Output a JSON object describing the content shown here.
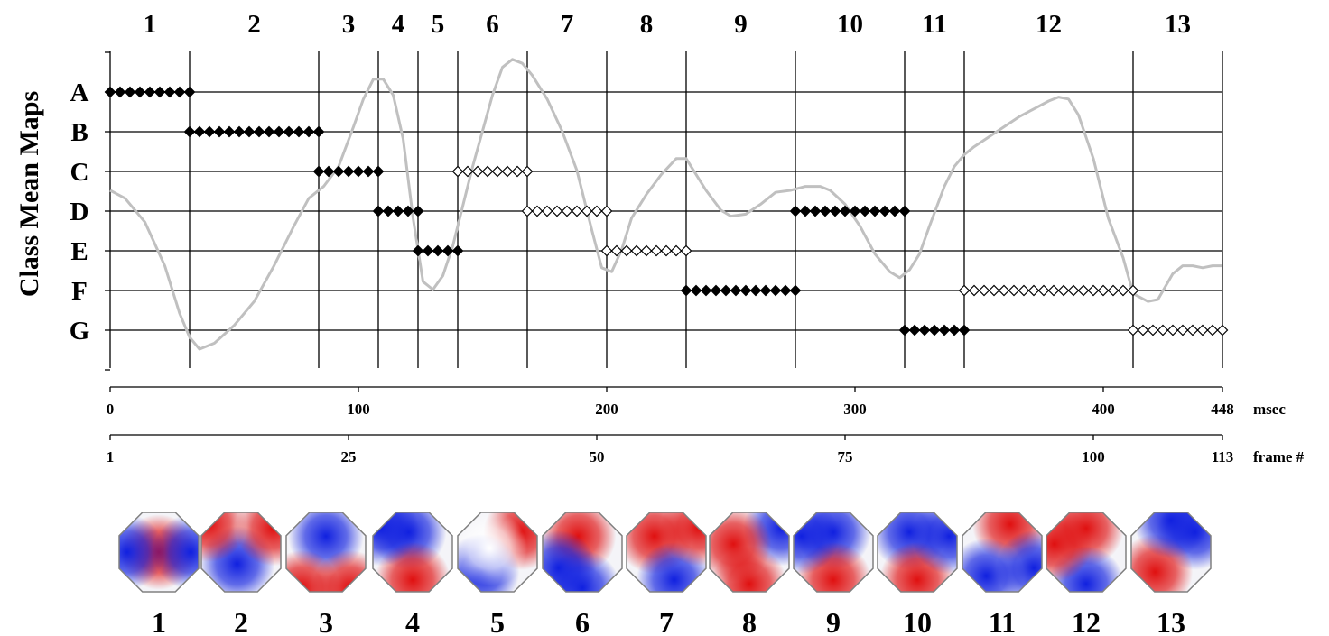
{
  "chart_data": {
    "type": "scatter",
    "ylabel": "Class Mean Maps",
    "y_classes": [
      "A",
      "B",
      "C",
      "D",
      "E",
      "F",
      "G"
    ],
    "xlabel_time": "msec",
    "xlabel_frame": "frame #",
    "time_ticks": [
      "0",
      "100",
      "200",
      "300",
      "400",
      "448"
    ],
    "time_tick_values": [
      0,
      100,
      200,
      300,
      400,
      448
    ],
    "frame_ticks": [
      "1",
      "25",
      "50",
      "75",
      "100",
      "113"
    ],
    "frame_tick_values": [
      0,
      96,
      196,
      296,
      396,
      448
    ],
    "xlim": [
      0,
      448
    ],
    "segments": [
      {
        "label": "1",
        "class": "A",
        "start": 0,
        "end": 32,
        "filled": true
      },
      {
        "label": "2",
        "class": "B",
        "start": 32,
        "end": 84,
        "filled": true
      },
      {
        "label": "3",
        "class": "C",
        "start": 84,
        "end": 108,
        "filled": true
      },
      {
        "label": "4",
        "class": "D",
        "start": 108,
        "end": 124,
        "filled": true
      },
      {
        "label": "5",
        "class": "E",
        "start": 124,
        "end": 140,
        "filled": true
      },
      {
        "label": "6",
        "class": "C",
        "start": 140,
        "end": 168,
        "filled": false
      },
      {
        "label": "7",
        "class": "D",
        "start": 168,
        "end": 200,
        "filled": false
      },
      {
        "label": "8",
        "class": "E",
        "start": 200,
        "end": 232,
        "filled": false
      },
      {
        "label": "9",
        "class": "F",
        "start": 232,
        "end": 276,
        "filled": true
      },
      {
        "label": "10",
        "class": "D",
        "start": 276,
        "end": 320,
        "filled": true
      },
      {
        "label": "11",
        "class": "G",
        "start": 320,
        "end": 344,
        "filled": true
      },
      {
        "label": "12",
        "class": "F",
        "start": 344,
        "end": 412,
        "filled": false
      },
      {
        "label": "13",
        "class": "G",
        "start": 412,
        "end": 448,
        "filled": false
      }
    ],
    "curve": {
      "x": [
        0,
        6,
        14,
        22,
        28,
        32,
        36,
        42,
        50,
        58,
        66,
        74,
        80,
        86,
        92,
        98,
        102,
        106,
        110,
        114,
        118,
        122,
        126,
        130,
        134,
        138,
        142,
        146,
        150,
        154,
        158,
        162,
        166,
        170,
        176,
        182,
        188,
        194,
        198,
        202,
        206,
        210,
        216,
        222,
        228,
        232,
        236,
        240,
        246,
        250,
        256,
        262,
        268,
        274,
        280,
        286,
        290,
        296,
        302,
        308,
        314,
        318,
        322,
        326,
        330,
        336,
        340,
        344,
        348,
        354,
        360,
        366,
        372,
        378,
        382,
        386,
        390,
        396,
        402,
        408,
        412,
        418,
        422,
        428,
        432,
        436,
        440,
        444,
        448
      ],
      "y": [
        4.5,
        4.3,
        3.7,
        2.6,
        1.4,
        0.8,
        0.5,
        0.65,
        1.1,
        1.7,
        2.6,
        3.6,
        4.3,
        4.6,
        5.1,
        6.1,
        6.8,
        7.3,
        7.3,
        6.9,
        5.8,
        3.8,
        2.2,
        2.0,
        2.35,
        3.1,
        4.1,
        5.1,
        6.0,
        6.9,
        7.6,
        7.8,
        7.7,
        7.4,
        6.8,
        6.0,
        5.0,
        3.5,
        2.55,
        2.45,
        3.0,
        3.8,
        4.4,
        4.9,
        5.3,
        5.3,
        4.9,
        4.5,
        4.0,
        3.85,
        3.9,
        4.15,
        4.45,
        4.5,
        4.6,
        4.6,
        4.5,
        4.15,
        3.6,
        2.9,
        2.45,
        2.3,
        2.5,
        2.9,
        3.6,
        4.6,
        5.1,
        5.4,
        5.6,
        5.85,
        6.1,
        6.35,
        6.55,
        6.75,
        6.85,
        6.8,
        6.4,
        5.3,
        3.8,
        2.8,
        1.9,
        1.7,
        1.75,
        2.4,
        2.6,
        2.6,
        2.55,
        2.6,
        2.6
      ]
    },
    "grid": true
  },
  "topomaps": {
    "labels": [
      "1",
      "2",
      "3",
      "4",
      "5",
      "6",
      "7",
      "8",
      "9",
      "10",
      "11",
      "12",
      "13"
    ]
  },
  "colors": {
    "grid": "#000000",
    "curve": "#c0c0c0",
    "marker": "#000000",
    "positive": "#e01010",
    "negative": "#1020e0"
  }
}
